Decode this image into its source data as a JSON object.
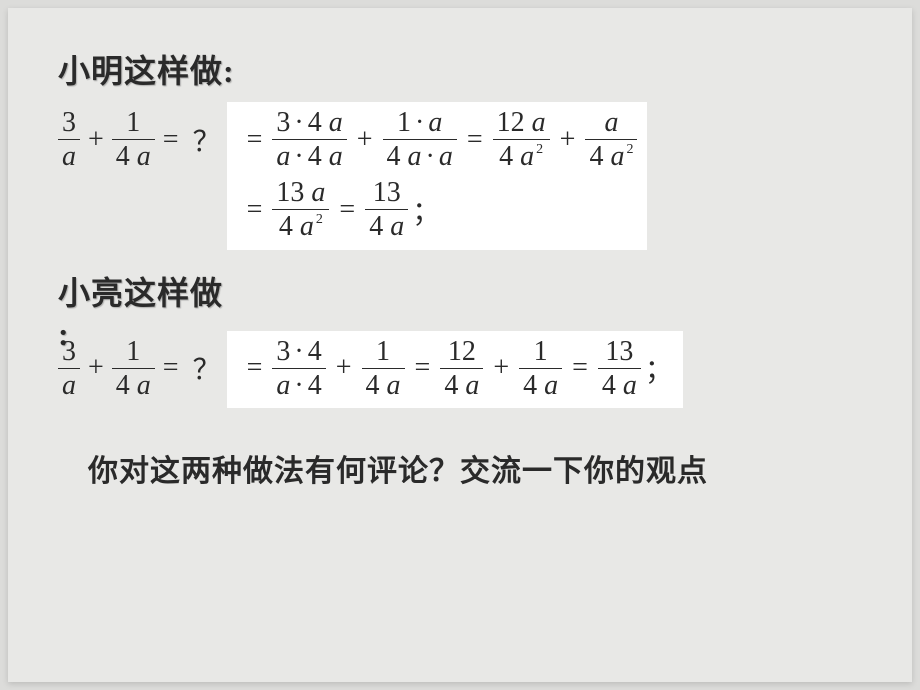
{
  "heading1": "小明这样做:",
  "heading2_line1": "小亮这样做",
  "heading2_line2": ":",
  "bottom_question": "你对这两种做法有何评论？交流一下你的观点",
  "left_expr": {
    "f1_num": "3",
    "f1_den": "a",
    "plus": "+",
    "f2_num": "1",
    "f2_den_n": "4",
    "f2_den_v": "a",
    "equals": "=",
    "qmark": "？"
  },
  "ming": {
    "r1_eq1": "=",
    "r1_f1_num_n": "3",
    "r1_f1_num_dot": "·",
    "r1_f1_num_n2": "4",
    "r1_f1_num_v": "a",
    "r1_f1_den_v1": "a",
    "r1_f1_den_dot": "·",
    "r1_f1_den_n": "4",
    "r1_f1_den_v2": "a",
    "r1_plus1": "+",
    "r1_f2_num_n": "1",
    "r1_f2_num_dot": "·",
    "r1_f2_num_v": "a",
    "r1_f2_den_n": "4",
    "r1_f2_den_v1": "a",
    "r1_f2_den_dot": "·",
    "r1_f2_den_v2": "a",
    "r1_eq2": "=",
    "r1_f3_num_n": "12",
    "r1_f3_num_v": "a",
    "r1_f3_den_n": "4",
    "r1_f3_den_v": "a",
    "r1_f3_den_sup": "2",
    "r1_plus2": "+",
    "r1_f4_num_v": "a",
    "r1_f4_den_n": "4",
    "r1_f4_den_v": "a",
    "r1_f4_den_sup": "2",
    "r2_eq1": "=",
    "r2_f1_num_n": "13",
    "r2_f1_num_v": "a",
    "r2_f1_den_n": "4",
    "r2_f1_den_v": "a",
    "r2_f1_den_sup": "2",
    "r2_eq2": "=",
    "r2_f2_num_n": "13",
    "r2_f2_den_n": "4",
    "r2_f2_den_v": "a",
    "semi": "；"
  },
  "liang": {
    "eq1": "=",
    "f1_num_n": "3",
    "f1_num_dot": "·",
    "f1_num_n2": "4",
    "f1_den_v": "a",
    "f1_den_dot": "·",
    "f1_den_n": "4",
    "plus1": "+",
    "f2_num_n": "1",
    "f2_den_n": "4",
    "f2_den_v": "a",
    "eq2": "=",
    "f3_num_n": "12",
    "f3_den_n": "4",
    "f3_den_v": "a",
    "plus2": "+",
    "f4_num_n": "1",
    "f4_den_n": "4",
    "f4_den_v": "a",
    "eq3": "=",
    "f5_num_n": "13",
    "f5_den_n": "4",
    "f5_den_v": "a",
    "semi": "；"
  },
  "colors": {
    "page_bg": "#dcdcda",
    "slide_bg": "#e8e8e6",
    "box_bg": "#ffffff",
    "text": "#2a2a2a"
  }
}
